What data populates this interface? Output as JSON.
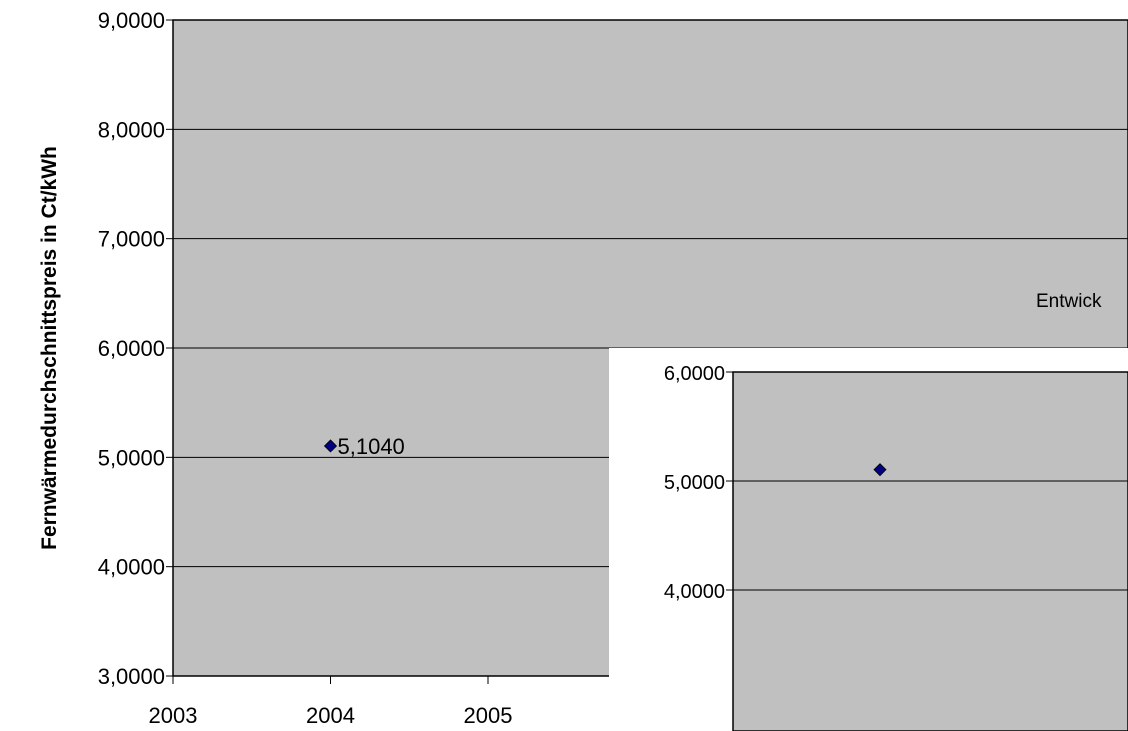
{
  "colors": {
    "plot_background": "#c0c0c0",
    "gridline": "#000000",
    "marker": "#000080",
    "page_background": "#ffffff"
  },
  "chart_data": [
    {
      "type": "scatter",
      "ylabel": "Fernwärmedurchschnittspreis in Ct/kWh",
      "ylim": [
        3,
        9
      ],
      "xlim": [
        2003,
        2006
      ],
      "y_ticks": [
        "3,0000",
        "4,0000",
        "5,0000",
        "6,0000",
        "7,0000",
        "8,0000",
        "9,0000"
      ],
      "x_ticks": [
        "2003",
        "2004",
        "2005"
      ],
      "grid": true,
      "points": [
        {
          "x": 2004,
          "y": 5.104,
          "label": "5,1040"
        }
      ]
    },
    {
      "type": "scatter",
      "title": "Entwick",
      "ylim": [
        3.6,
        6
      ],
      "y_ticks": [
        "4,0000",
        "5,0000",
        "6,0000"
      ],
      "grid": true,
      "points": [
        {
          "x": 2004,
          "y": 5.104
        }
      ]
    }
  ]
}
